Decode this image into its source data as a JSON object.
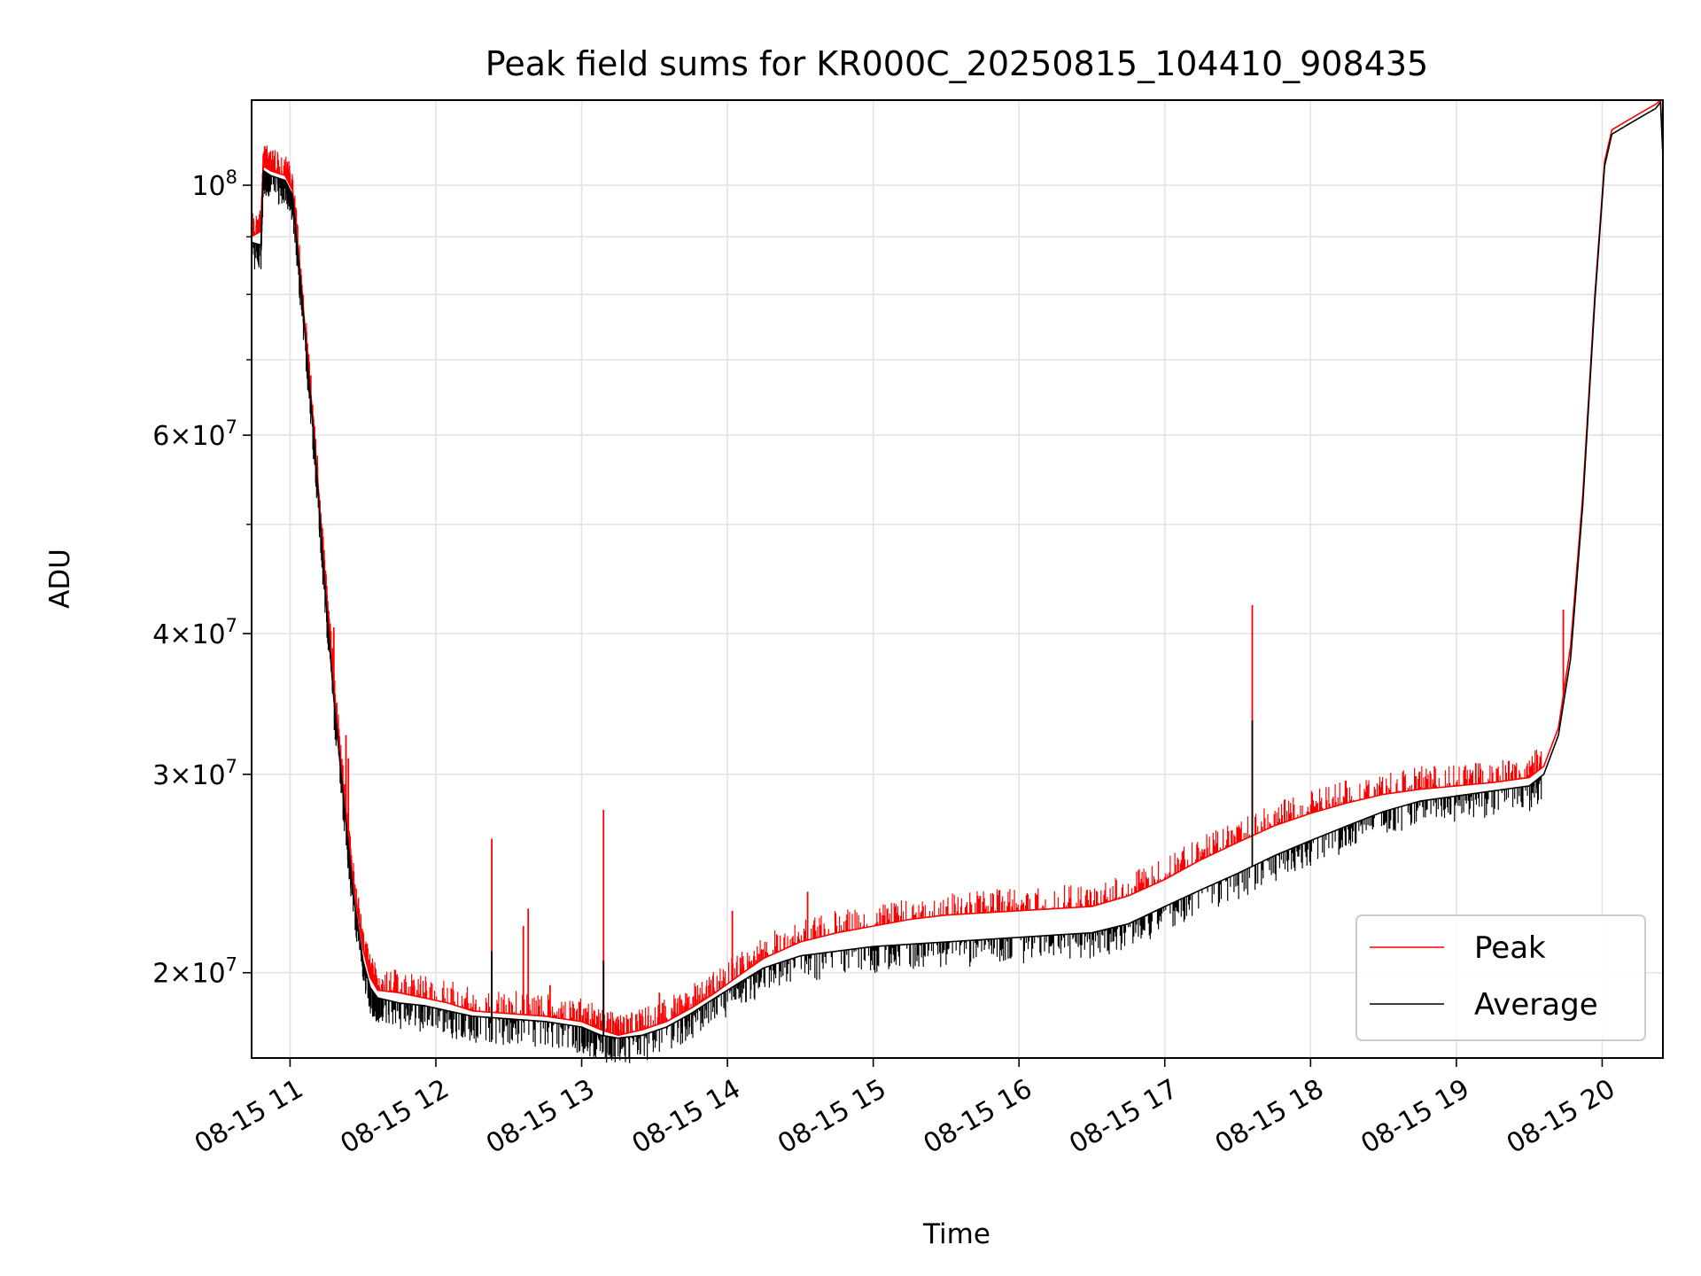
{
  "chart_data": {
    "type": "line",
    "title": "Peak field sums for KR000C_20250815_104410_908435",
    "xlabel": "Time",
    "ylabel": "ADU",
    "yscale": "log",
    "ylim": [
      16800000,
      119000000
    ],
    "xlim": [
      "2025-08-15 10:44:10",
      "2025-08-15 20:25:00"
    ],
    "x_ticks": [
      {
        "t": "2025-08-15 11:00",
        "label": "08-15 11"
      },
      {
        "t": "2025-08-15 12:00",
        "label": "08-15 12"
      },
      {
        "t": "2025-08-15 13:00",
        "label": "08-15 13"
      },
      {
        "t": "2025-08-15 14:00",
        "label": "08-15 14"
      },
      {
        "t": "2025-08-15 15:00",
        "label": "08-15 15"
      },
      {
        "t": "2025-08-15 16:00",
        "label": "08-15 16"
      },
      {
        "t": "2025-08-15 17:00",
        "label": "08-15 17"
      },
      {
        "t": "2025-08-15 18:00",
        "label": "08-15 18"
      },
      {
        "t": "2025-08-15 19:00",
        "label": "08-15 19"
      },
      {
        "t": "2025-08-15 20:00",
        "label": "08-15 20"
      }
    ],
    "y_ticks": [
      {
        "value": 20000000,
        "mantissa": "2",
        "exponent": "7"
      },
      {
        "value": 30000000,
        "mantissa": "3",
        "exponent": "7"
      },
      {
        "value": 40000000,
        "mantissa": "4",
        "exponent": "7"
      },
      {
        "value": 60000000,
        "mantissa": "6",
        "exponent": "7"
      },
      {
        "value": 100000000,
        "mantissa": "",
        "exponent": "8"
      }
    ],
    "y_minor_ticks": [
      50000000,
      70000000,
      80000000,
      90000000
    ],
    "grid": true,
    "legend_position": "lower-right",
    "series": [
      {
        "name": "Peak",
        "color": "#ff0000",
        "points": [
          [
            "2025-08-15 10:44",
            90000000
          ],
          [
            "2025-08-15 10:48",
            91000000
          ],
          [
            "2025-08-15 10:49",
            104000000
          ],
          [
            "2025-08-15 10:52",
            103000000
          ],
          [
            "2025-08-15 10:58",
            102000000
          ],
          [
            "2025-08-15 11:01",
            99000000
          ],
          [
            "2025-08-15 11:05",
            80000000
          ],
          [
            "2025-08-15 11:10",
            60000000
          ],
          [
            "2025-08-15 11:14",
            46000000
          ],
          [
            "2025-08-15 11:18",
            36000000
          ],
          [
            "2025-08-15 11:22",
            29000000
          ],
          [
            "2025-08-15 11:26",
            24000000
          ],
          [
            "2025-08-15 11:30",
            21000000
          ],
          [
            "2025-08-15 11:33",
            19800000
          ],
          [
            "2025-08-15 11:36",
            19300000
          ],
          [
            "2025-08-15 11:45",
            19200000
          ],
          [
            "2025-08-15 11:55",
            19000000
          ],
          [
            "2025-08-15 12:05",
            18800000
          ],
          [
            "2025-08-15 12:15",
            18500000
          ],
          [
            "2025-08-15 12:30",
            18400000
          ],
          [
            "2025-08-15 12:45",
            18300000
          ],
          [
            "2025-08-15 13:00",
            18100000
          ],
          [
            "2025-08-15 13:08",
            17800000
          ],
          [
            "2025-08-15 13:15",
            17600000
          ],
          [
            "2025-08-15 13:25",
            17800000
          ],
          [
            "2025-08-15 13:35",
            18100000
          ],
          [
            "2025-08-15 13:45",
            18600000
          ],
          [
            "2025-08-15 13:55",
            19200000
          ],
          [
            "2025-08-15 14:05",
            19900000
          ],
          [
            "2025-08-15 14:15",
            20600000
          ],
          [
            "2025-08-15 14:30",
            21300000
          ],
          [
            "2025-08-15 14:45",
            21700000
          ],
          [
            "2025-08-15 15:00",
            22000000
          ],
          [
            "2025-08-15 15:15",
            22300000
          ],
          [
            "2025-08-15 15:30",
            22500000
          ],
          [
            "2025-08-15 15:45",
            22600000
          ],
          [
            "2025-08-15 16:00",
            22700000
          ],
          [
            "2025-08-15 16:15",
            22800000
          ],
          [
            "2025-08-15 16:30",
            22900000
          ],
          [
            "2025-08-15 16:45",
            23400000
          ],
          [
            "2025-08-15 17:00",
            24200000
          ],
          [
            "2025-08-15 17:15",
            25200000
          ],
          [
            "2025-08-15 17:30",
            26100000
          ],
          [
            "2025-08-15 17:45",
            27000000
          ],
          [
            "2025-08-15 18:00",
            27700000
          ],
          [
            "2025-08-15 18:15",
            28300000
          ],
          [
            "2025-08-15 18:30",
            28800000
          ],
          [
            "2025-08-15 18:45",
            29100000
          ],
          [
            "2025-08-15 19:00",
            29300000
          ],
          [
            "2025-08-15 19:15",
            29500000
          ],
          [
            "2025-08-15 19:30",
            29800000
          ],
          [
            "2025-08-15 19:36",
            30500000
          ],
          [
            "2025-08-15 19:42",
            33000000
          ],
          [
            "2025-08-15 19:47",
            39000000
          ],
          [
            "2025-08-15 19:52",
            53000000
          ],
          [
            "2025-08-15 19:57",
            80000000
          ],
          [
            "2025-08-15 20:01",
            105000000
          ],
          [
            "2025-08-15 20:04",
            112000000
          ],
          [
            "2025-08-15 20:10",
            114000000
          ],
          [
            "2025-08-15 20:16",
            116000000
          ],
          [
            "2025-08-15 20:22",
            118000000
          ],
          [
            "2025-08-15 20:24",
            119000000
          ],
          [
            "2025-08-15 20:25",
            107000000
          ]
        ],
        "spikes": [
          [
            "2025-08-15 11:18",
            40500000
          ],
          [
            "2025-08-15 11:23",
            32500000
          ],
          [
            "2025-08-15 11:24",
            31000000
          ],
          [
            "2025-08-15 11:31",
            21200000
          ],
          [
            "2025-08-15 12:23",
            26300000
          ],
          [
            "2025-08-15 12:36",
            22000000
          ],
          [
            "2025-08-15 12:38",
            22800000
          ],
          [
            "2025-08-15 12:47",
            19500000
          ],
          [
            "2025-08-15 13:09",
            27900000
          ],
          [
            "2025-08-15 13:32",
            19200000
          ],
          [
            "2025-08-15 13:54",
            19300000
          ],
          [
            "2025-08-15 14:02",
            22700000
          ],
          [
            "2025-08-15 14:33",
            23600000
          ],
          [
            "2025-08-15 15:44",
            23400000
          ],
          [
            "2025-08-15 17:36",
            42400000
          ],
          [
            "2025-08-15 18:51",
            30500000
          ],
          [
            "2025-08-15 19:08",
            30700000
          ],
          [
            "2025-08-15 19:44",
            42000000
          ]
        ]
      },
      {
        "name": "Average",
        "color": "#000000",
        "points": [
          [
            "2025-08-15 10:44",
            89000000
          ],
          [
            "2025-08-15 10:48",
            88500000
          ],
          [
            "2025-08-15 10:49",
            103000000
          ],
          [
            "2025-08-15 10:52",
            102000000
          ],
          [
            "2025-08-15 10:58",
            101000000
          ],
          [
            "2025-08-15 11:01",
            98000000
          ],
          [
            "2025-08-15 11:05",
            79000000
          ],
          [
            "2025-08-15 11:10",
            59000000
          ],
          [
            "2025-08-15 11:14",
            45000000
          ],
          [
            "2025-08-15 11:18",
            35000000
          ],
          [
            "2025-08-15 11:22",
            28500000
          ],
          [
            "2025-08-15 11:26",
            23500000
          ],
          [
            "2025-08-15 11:30",
            20500000
          ],
          [
            "2025-08-15 11:33",
            19400000
          ],
          [
            "2025-08-15 11:36",
            19000000
          ],
          [
            "2025-08-15 11:45",
            18800000
          ],
          [
            "2025-08-15 11:55",
            18700000
          ],
          [
            "2025-08-15 12:05",
            18500000
          ],
          [
            "2025-08-15 12:15",
            18300000
          ],
          [
            "2025-08-15 12:30",
            18200000
          ],
          [
            "2025-08-15 12:45",
            18100000
          ],
          [
            "2025-08-15 13:00",
            17900000
          ],
          [
            "2025-08-15 13:08",
            17600000
          ],
          [
            "2025-08-15 13:15",
            17500000
          ],
          [
            "2025-08-15 13:25",
            17600000
          ],
          [
            "2025-08-15 13:35",
            17900000
          ],
          [
            "2025-08-15 13:45",
            18400000
          ],
          [
            "2025-08-15 13:55",
            19000000
          ],
          [
            "2025-08-15 14:05",
            19600000
          ],
          [
            "2025-08-15 14:15",
            20200000
          ],
          [
            "2025-08-15 14:30",
            20700000
          ],
          [
            "2025-08-15 14:45",
            20900000
          ],
          [
            "2025-08-15 15:00",
            21100000
          ],
          [
            "2025-08-15 15:15",
            21200000
          ],
          [
            "2025-08-15 15:30",
            21300000
          ],
          [
            "2025-08-15 15:45",
            21400000
          ],
          [
            "2025-08-15 16:00",
            21500000
          ],
          [
            "2025-08-15 16:15",
            21600000
          ],
          [
            "2025-08-15 16:30",
            21700000
          ],
          [
            "2025-08-15 16:45",
            22100000
          ],
          [
            "2025-08-15 17:00",
            22900000
          ],
          [
            "2025-08-15 17:15",
            23700000
          ],
          [
            "2025-08-15 17:30",
            24500000
          ],
          [
            "2025-08-15 17:45",
            25400000
          ],
          [
            "2025-08-15 18:00",
            26200000
          ],
          [
            "2025-08-15 18:15",
            27000000
          ],
          [
            "2025-08-15 18:30",
            27800000
          ],
          [
            "2025-08-15 18:45",
            28400000
          ],
          [
            "2025-08-15 19:00",
            28700000
          ],
          [
            "2025-08-15 19:15",
            29000000
          ],
          [
            "2025-08-15 19:30",
            29300000
          ],
          [
            "2025-08-15 19:36",
            30000000
          ],
          [
            "2025-08-15 19:42",
            32500000
          ],
          [
            "2025-08-15 19:47",
            38000000
          ],
          [
            "2025-08-15 19:52",
            52000000
          ],
          [
            "2025-08-15 19:57",
            79000000
          ],
          [
            "2025-08-15 20:01",
            104000000
          ],
          [
            "2025-08-15 20:04",
            111000000
          ],
          [
            "2025-08-15 20:10",
            113000000
          ],
          [
            "2025-08-15 20:16",
            115000000
          ],
          [
            "2025-08-15 20:22",
            117000000
          ],
          [
            "2025-08-15 20:24",
            118500000
          ],
          [
            "2025-08-15 20:25",
            106000000
          ]
        ],
        "spikes": [
          [
            "2025-08-15 12:23",
            20900000
          ],
          [
            "2025-08-15 13:09",
            20500000
          ],
          [
            "2025-08-15 17:36",
            33500000
          ]
        ]
      }
    ]
  }
}
